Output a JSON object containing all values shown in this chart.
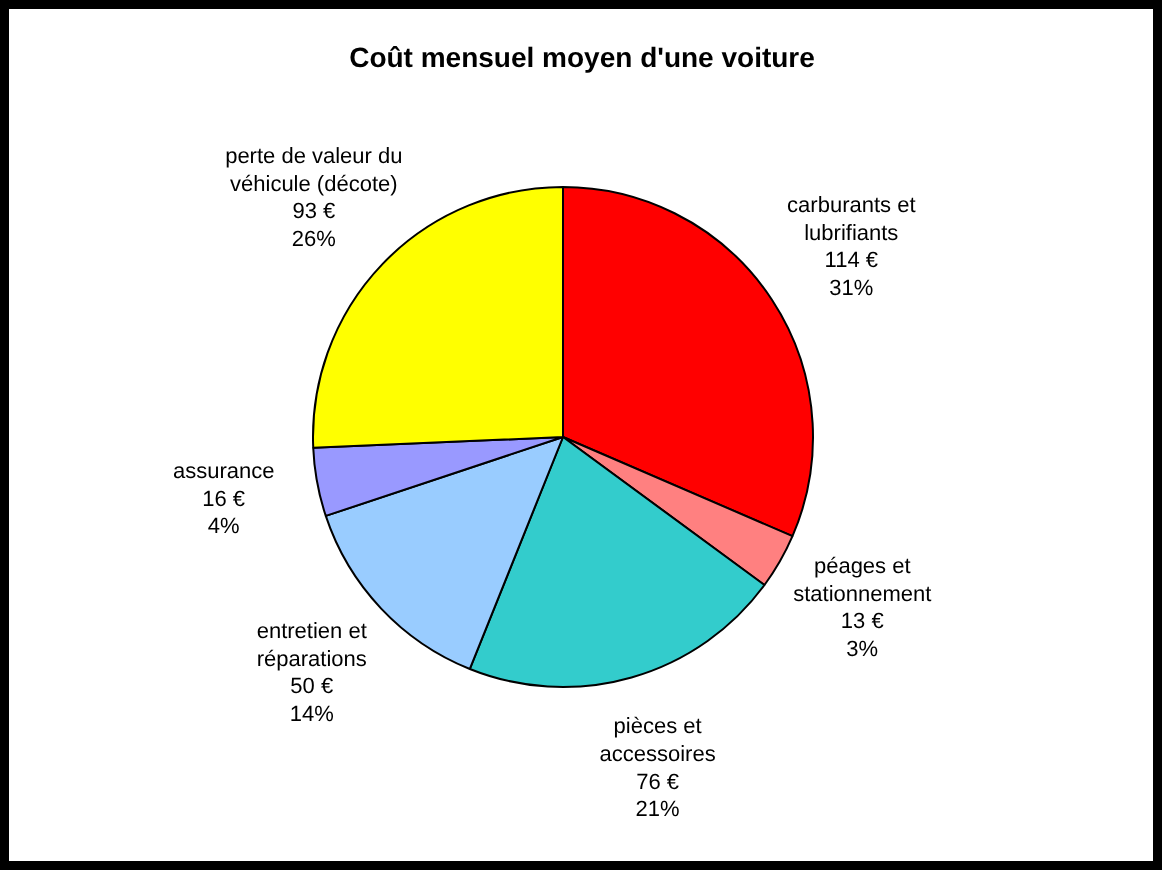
{
  "chart_data": {
    "type": "pie",
    "title": "Coût mensuel moyen d'une voiture",
    "categories": [
      "carburants et\nlubrifiants",
      "péages et\nstationnement",
      "pièces et\naccessoires",
      "entretien et\nréparations",
      "assurance",
      "perte de valeur du\nvéhicule (décote)"
    ],
    "values": [
      114,
      13,
      76,
      50,
      16,
      93
    ],
    "value_labels": [
      "114 €\n31%",
      "13 €\n3%",
      "76 €\n21%",
      "50 €\n14%",
      "16 €\n4%",
      "93 €\n26%"
    ],
    "colors": [
      "#ff0000",
      "#ff8080",
      "#33cccc",
      "#99ccff",
      "#9999ff",
      "#ffff00"
    ]
  }
}
